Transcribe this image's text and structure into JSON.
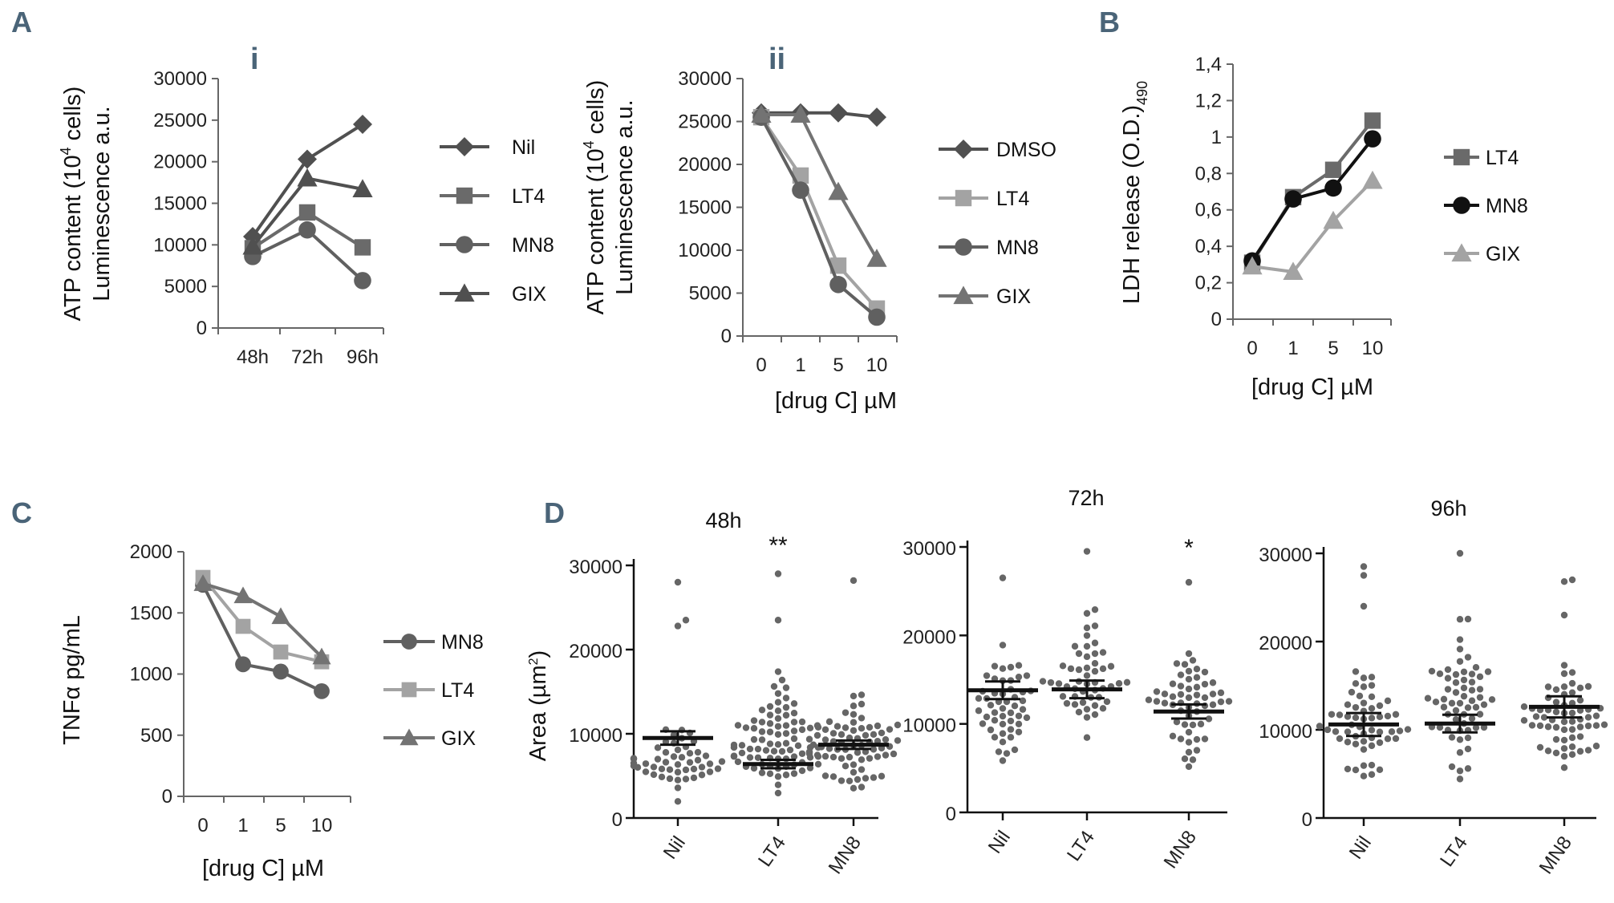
{
  "panel_labels": {
    "A": "A",
    "B": "B",
    "C": "C",
    "D": "D",
    "i": "i",
    "ii": "ii"
  },
  "colors": {
    "nil_dmso": "#505050",
    "lt4": "#6a6a6a",
    "lt4_light": "#a3a3a3",
    "mn8": "#606060",
    "gix": "#737373",
    "black": "#111111",
    "dots": "#666666"
  },
  "chart_data": [
    {
      "id": "Ai",
      "type": "line",
      "ylabel_line1": "ATP content (10",
      "ylabel_sup": "4",
      "ylabel_line1_end": " cells)",
      "ylabel_line2": "Luminescence a.u.",
      "categories": [
        "48h",
        "72h",
        "96h"
      ],
      "yticks": [
        "0",
        "5000",
        "10000",
        "15000",
        "20000",
        "25000",
        "30000"
      ],
      "ylim": [
        0,
        30000
      ],
      "series": [
        {
          "name": "Nil",
          "marker": "diamond",
          "values": [
            11000,
            20300,
            24500
          ]
        },
        {
          "name": "LT4",
          "marker": "square",
          "values": [
            9600,
            13900,
            9700
          ]
        },
        {
          "name": "MN8",
          "marker": "circle",
          "values": [
            8600,
            11800,
            5700
          ]
        },
        {
          "name": "GIX",
          "marker": "triangle",
          "values": [
            9800,
            18000,
            16700
          ]
        }
      ]
    },
    {
      "id": "Aii",
      "type": "line",
      "ylabel_line1": "ATP content (10",
      "ylabel_sup": "4",
      "ylabel_line1_end": " cells)",
      "ylabel_line2": "Luminescence a.u.",
      "xlabel": "[drug C] µM",
      "categories": [
        "0",
        "1",
        "5",
        "10"
      ],
      "yticks": [
        "0",
        "5000",
        "10000",
        "15000",
        "20000",
        "25000",
        "30000"
      ],
      "ylim": [
        0,
        30000
      ],
      "series": [
        {
          "name": "DMSO",
          "marker": "diamond",
          "values": [
            26000,
            26000,
            26000,
            25500
          ]
        },
        {
          "name": "LT4",
          "marker": "square",
          "values": [
            25500,
            18700,
            8200,
            3200
          ]
        },
        {
          "name": "MN8",
          "marker": "circle",
          "values": [
            25500,
            17000,
            6000,
            2200
          ]
        },
        {
          "name": "GIX",
          "marker": "triangle",
          "values": [
            25800,
            25800,
            16800,
            9000
          ]
        }
      ]
    },
    {
      "id": "B",
      "type": "line",
      "ylabel_main": "LDH release (O.D.)",
      "ylabel_sub": "490",
      "xlabel": "[drug C] µM",
      "categories": [
        "0",
        "1",
        "5",
        "10"
      ],
      "yticks": [
        "0",
        "0,2",
        "0,4",
        "0,6",
        "0,8",
        "1",
        "1,2",
        "1,4"
      ],
      "ylim": [
        0,
        1.4
      ],
      "series": [
        {
          "name": "LT4",
          "marker": "square",
          "values": [
            0.31,
            0.67,
            0.82,
            1.09
          ]
        },
        {
          "name": "MN8",
          "marker": "circle",
          "values": [
            0.32,
            0.66,
            0.72,
            0.99
          ]
        },
        {
          "name": "GIX",
          "marker": "triangle",
          "values": [
            0.29,
            0.26,
            0.54,
            0.76
          ]
        }
      ]
    },
    {
      "id": "C",
      "type": "line",
      "ylabel": "TNFα pg/mL",
      "xlabel": "[drug C] µM",
      "categories": [
        "0",
        "1",
        "5",
        "10"
      ],
      "yticks": [
        "0",
        "500",
        "1000",
        "1500",
        "2000"
      ],
      "ylim": [
        0,
        2000
      ],
      "series": [
        {
          "name": "MN8",
          "marker": "circle",
          "values": [
            1730,
            1080,
            1020,
            860
          ]
        },
        {
          "name": "LT4",
          "marker": "square",
          "values": [
            1790,
            1390,
            1180,
            1100
          ]
        },
        {
          "name": "GIX",
          "marker": "triangle",
          "values": [
            1740,
            1640,
            1470,
            1140
          ]
        }
      ]
    },
    {
      "id": "D48",
      "type": "scatter",
      "title": "48h",
      "ylabel": "Area (µm",
      "ylabel_sup": "2",
      "ylabel_end": ")",
      "categories": [
        "Nil",
        "LT4",
        "MN8"
      ],
      "yticks": [
        "0",
        "10000",
        "20000",
        "30000"
      ],
      "ylim": [
        0,
        30000
      ],
      "annotations": [
        "",
        "**",
        ""
      ],
      "groups": [
        {
          "name": "Nil",
          "mean": 9500,
          "sem": 800,
          "count": 50,
          "seed": 11,
          "low": 1500,
          "high": 13500,
          "outliers": [
            28000,
            23500,
            22800
          ]
        },
        {
          "name": "LT4",
          "mean": 6400,
          "sem": 500,
          "count": 85,
          "seed": 23,
          "low": 1200,
          "high": 19000,
          "outliers": [
            29000,
            23500
          ]
        },
        {
          "name": "MN8",
          "mean": 8700,
          "sem": 500,
          "count": 75,
          "seed": 37,
          "low": 1500,
          "high": 17000,
          "outliers": [
            28200
          ]
        }
      ]
    },
    {
      "id": "D72",
      "type": "scatter",
      "title": "72h",
      "categories": [
        "Nil",
        "LT4",
        "MN8"
      ],
      "yticks": [
        "0",
        "10000",
        "20000",
        "30000"
      ],
      "ylim": [
        0,
        30000
      ],
      "annotations": [
        "",
        "",
        "*"
      ],
      "groups": [
        {
          "name": "Nil",
          "mean": 13800,
          "sem": 1000,
          "count": 50,
          "seed": 5,
          "low": 4000,
          "high": 22000,
          "outliers": [
            26500
          ]
        },
        {
          "name": "LT4",
          "mean": 13900,
          "sem": 1000,
          "count": 50,
          "seed": 19,
          "low": 4500,
          "high": 27000,
          "outliers": [
            29500
          ]
        },
        {
          "name": "MN8",
          "mean": 11400,
          "sem": 800,
          "count": 55,
          "seed": 29,
          "low": 2800,
          "high": 22000,
          "outliers": [
            26000
          ]
        }
      ]
    },
    {
      "id": "D96",
      "type": "scatter",
      "title": "96h",
      "categories": [
        "Nil",
        "LT4",
        "MN8"
      ],
      "yticks": [
        "0",
        "10000",
        "20000",
        "30000"
      ],
      "ylim": [
        0,
        30000
      ],
      "annotations": [
        "",
        "",
        ""
      ],
      "groups": [
        {
          "name": "Nil",
          "mean": 10600,
          "sem": 1300,
          "count": 55,
          "seed": 41,
          "low": 2500,
          "high": 20000,
          "outliers": [
            28500,
            27500,
            24000
          ]
        },
        {
          "name": "LT4",
          "mean": 10700,
          "sem": 1000,
          "count": 60,
          "seed": 53,
          "low": 1500,
          "high": 27000,
          "outliers": [
            30000
          ]
        },
        {
          "name": "MN8",
          "mean": 12600,
          "sem": 1200,
          "count": 60,
          "seed": 61,
          "low": 2800,
          "high": 20000,
          "outliers": [
            27000,
            26800,
            23000
          ]
        }
      ]
    }
  ]
}
